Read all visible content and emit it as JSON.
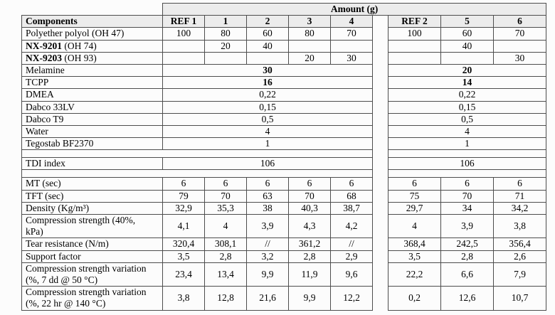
{
  "table": {
    "amount_header": "Amount (g)",
    "header": {
      "components": "Components",
      "left": [
        "REF 1",
        "1",
        "2",
        "3",
        "4"
      ],
      "right": [
        "REF 2",
        "5",
        "6"
      ]
    },
    "rows": [
      {
        "type": "data",
        "label": {
          "text": "Polyether polyol (OH 47)"
        },
        "left": [
          "100",
          "80",
          "60",
          "80",
          "70"
        ],
        "right": [
          "100",
          "60",
          "70"
        ]
      },
      {
        "type": "data",
        "label": {
          "bold": "NX-9201",
          "text": " (OH 74)"
        },
        "left": [
          "",
          "20",
          "40",
          "",
          ""
        ],
        "right": [
          "",
          "40",
          ""
        ]
      },
      {
        "type": "data",
        "label": {
          "bold": "NX-9203",
          "text": " (OH 93)"
        },
        "left": [
          "",
          "",
          "",
          "20",
          "30"
        ],
        "right": [
          "",
          "",
          "30"
        ]
      },
      {
        "type": "merged",
        "label": {
          "text": "Melamine"
        },
        "left": "30",
        "right": "20",
        "bold_values": true
      },
      {
        "type": "merged",
        "label": {
          "text": "TCPP"
        },
        "left": "16",
        "right": "14",
        "bold_values": true
      },
      {
        "type": "merged",
        "label": {
          "text": "DMEA"
        },
        "left": "0,22",
        "right": "0,22"
      },
      {
        "type": "merged",
        "label": {
          "text": "Dabco 33LV"
        },
        "left": "0,15",
        "right": "0,15"
      },
      {
        "type": "merged",
        "label": {
          "text": "Dabco T9"
        },
        "left": "0,5",
        "right": "0,5"
      },
      {
        "type": "merged",
        "label": {
          "text": "Water"
        },
        "left": "4",
        "right": "4"
      },
      {
        "type": "merged",
        "label": {
          "text": "Tegostab BF2370"
        },
        "left": "1",
        "right": "1"
      },
      {
        "type": "spacer"
      },
      {
        "type": "merged",
        "label": {
          "text": "TDI index"
        },
        "left": "106",
        "right": "106"
      },
      {
        "type": "spacer"
      },
      {
        "type": "data",
        "label": {
          "text": "MT (sec)"
        },
        "left": [
          "6",
          "6",
          "6",
          "6",
          "6"
        ],
        "right": [
          "6",
          "6",
          "6"
        ]
      },
      {
        "type": "data",
        "label": {
          "text": "TFT (sec)"
        },
        "left": [
          "79",
          "70",
          "63",
          "70",
          "68"
        ],
        "right": [
          "75",
          "70",
          "71"
        ]
      },
      {
        "type": "data",
        "label": {
          "text": "Density (Kg/m³)"
        },
        "left": [
          "32,9",
          "35,3",
          "38",
          "40,3",
          "38,7"
        ],
        "right": [
          "29,7",
          "34",
          "34,2"
        ]
      },
      {
        "type": "data",
        "label": {
          "text": "Compression strength (40%,\nkPa)"
        },
        "left": [
          "4,1",
          "4",
          "3,9",
          "4,3",
          "4,2"
        ],
        "right": [
          "4",
          "3,9",
          "3,8"
        ]
      },
      {
        "type": "data",
        "label": {
          "text": "Tear resistance (N/m)"
        },
        "left": [
          "320,4",
          "308,1",
          "//",
          "361,2",
          "//"
        ],
        "right": [
          "368,4",
          "242,5",
          "356,4"
        ]
      },
      {
        "type": "data",
        "label": {
          "text": "Support factor"
        },
        "left": [
          "3,5",
          "2,8",
          "3,2",
          "2,8",
          "2,9"
        ],
        "right": [
          "3,5",
          "2,8",
          "2,6"
        ]
      },
      {
        "type": "data",
        "label": {
          "text": "Compression strength variation\n(%, 7 dd @ 50 °C)"
        },
        "left": [
          "23,4",
          "13,4",
          "9,9",
          "11,9",
          "9,6"
        ],
        "right": [
          "22,2",
          "6,6",
          "7,9"
        ]
      },
      {
        "type": "data",
        "label": {
          "text": "Compression strength variation\n(%, 22 hr @ 140 °C)"
        },
        "left": [
          "3,8",
          "12,8",
          "21,6",
          "9,9",
          "12,2"
        ],
        "right": [
          "0,2",
          "12,6",
          "10,7"
        ]
      }
    ]
  },
  "colors": {
    "header_bg": "#ececec",
    "border": "#4d4d4d"
  }
}
